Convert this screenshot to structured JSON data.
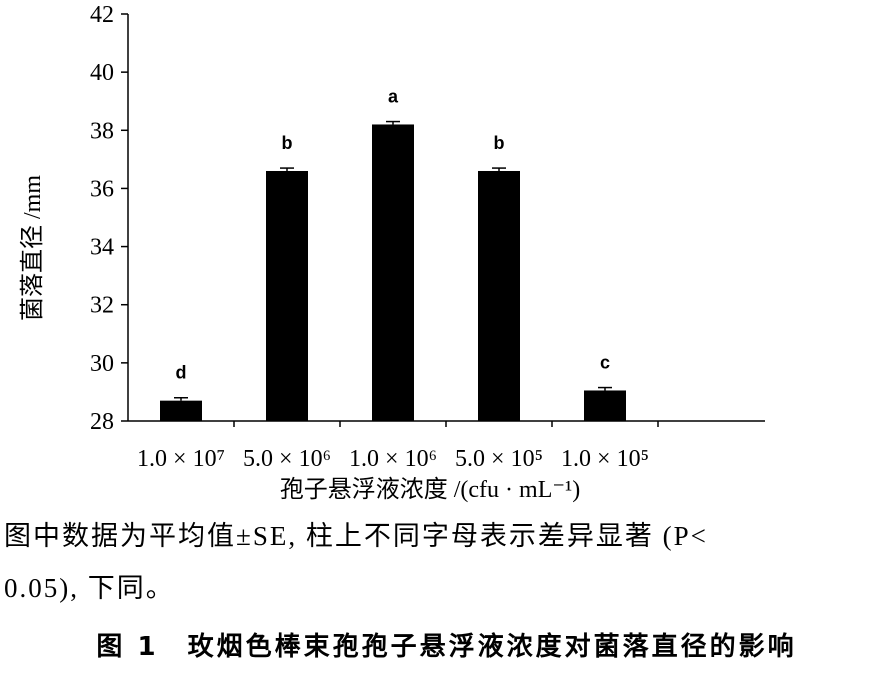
{
  "chart_data": {
    "type": "bar",
    "categories": [
      "1.0 × 10⁷",
      "5.0 × 10⁶",
      "1.0 × 10⁶",
      "5.0 × 10⁵",
      "1.0 × 10⁵"
    ],
    "values": [
      28.7,
      36.6,
      38.2,
      36.6,
      29.05
    ],
    "errors": [
      0.1,
      0.1,
      0.1,
      0.1,
      0.1
    ],
    "significance": [
      "d",
      "b",
      "a",
      "b",
      "c"
    ],
    "xlabel": "孢子悬浮液浓度 /(cfu · mL⁻¹)",
    "ylabel": "菌落直径 /mm",
    "ylim": [
      28,
      42
    ],
    "yticks": [
      28,
      30,
      32,
      34,
      36,
      38,
      40,
      42
    ],
    "bar_color": "#000000",
    "grid": false
  },
  "note_line1": "图中数据为平均值±SE, 柱上不同字母表示差异显著 (P<",
  "note_line2": "0.05), 下同。",
  "caption": "图 1　玫烟色棒束孢孢子悬浮液浓度对菌落直径的影响"
}
